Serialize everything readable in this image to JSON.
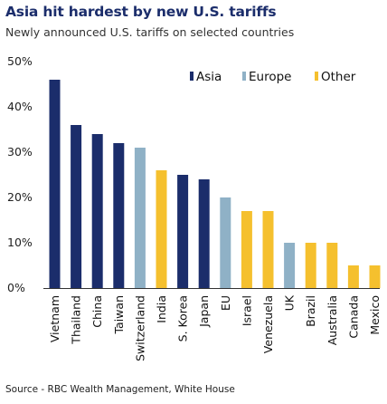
{
  "chart_data": {
    "type": "bar",
    "title": "Asia hit hardest by new U.S. tariffs",
    "subtitle": "Newly announced U.S. tariffs on selected countries",
    "source": "Source - RBC Wealth Management, White House",
    "categories": [
      "Vietnam",
      "Thailand",
      "China",
      "Taiwan",
      "Switzerland",
      "India",
      "S. Korea",
      "Japan",
      "EU",
      "Israel",
      "Venezuela",
      "UK",
      "Brazil",
      "Australia",
      "Canada",
      "Mexico"
    ],
    "values": [
      46,
      36,
      34,
      32,
      31,
      26,
      25,
      24,
      20,
      17,
      17,
      10,
      10,
      10,
      5,
      5
    ],
    "groups": [
      "Asia",
      "Asia",
      "Asia",
      "Asia",
      "Europe",
      "Other",
      "Asia",
      "Asia",
      "Europe",
      "Other",
      "Other",
      "Europe",
      "Other",
      "Other",
      "Other",
      "Other"
    ],
    "legend": [
      {
        "name": "Asia",
        "color": "#1b2d6b"
      },
      {
        "name": "Europe",
        "color": "#8fb1c6"
      },
      {
        "name": "Other",
        "color": "#f5c02e"
      }
    ],
    "legend_position": "top-right",
    "yticks": [
      "0%",
      "10%",
      "20%",
      "30%",
      "40%",
      "50%"
    ],
    "ylim": [
      0,
      50
    ],
    "grid": false
  }
}
